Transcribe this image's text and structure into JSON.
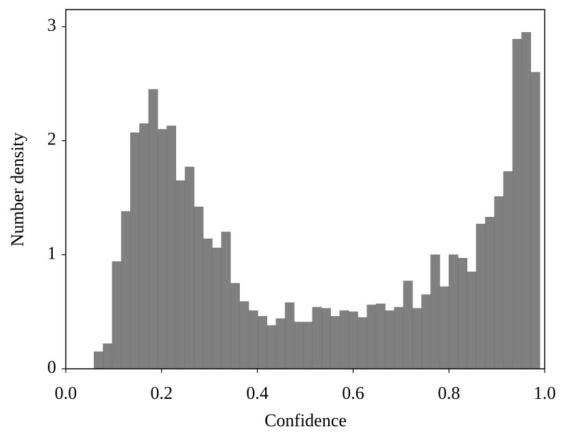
{
  "chart_data": {
    "type": "histogram",
    "xlabel": "Confidence",
    "ylabel": "Number density",
    "bins": [
      0.059,
      0.078,
      0.097,
      0.116,
      0.135,
      0.154,
      0.173,
      0.192,
      0.211,
      0.23,
      0.249,
      0.268,
      0.287,
      0.306,
      0.325,
      0.344,
      0.363,
      0.382,
      0.401,
      0.42,
      0.439,
      0.458,
      0.477,
      0.496,
      0.515,
      0.534,
      0.553,
      0.572,
      0.591,
      0.61,
      0.629,
      0.648,
      0.667,
      0.686,
      0.705,
      0.724,
      0.743,
      0.762,
      0.781,
      0.8,
      0.819,
      0.838,
      0.857,
      0.876,
      0.895,
      0.914,
      0.933,
      0.952,
      0.971,
      0.99
    ],
    "values": [
      0.15,
      0.22,
      0.94,
      1.38,
      2.07,
      2.15,
      2.45,
      2.1,
      2.13,
      1.65,
      1.77,
      1.42,
      1.14,
      1.06,
      1.2,
      0.75,
      0.59,
      0.51,
      0.46,
      0.38,
      0.44,
      0.58,
      0.41,
      0.41,
      0.54,
      0.53,
      0.46,
      0.51,
      0.5,
      0.45,
      0.56,
      0.57,
      0.51,
      0.54,
      0.77,
      0.53,
      0.65,
      1.0,
      0.72,
      1.0,
      0.97,
      0.85,
      1.27,
      1.33,
      1.51,
      1.73,
      2.89,
      2.95,
      2.6
    ],
    "color": "#808080",
    "xlim": [
      0,
      1
    ],
    "ylim": [
      0,
      3.15
    ],
    "xticks": [
      {
        "value": 0,
        "label": "0.0"
      },
      0.2,
      0.4,
      0.6,
      0.8,
      {
        "value": 1,
        "label": "1.0"
      }
    ],
    "yticks": [
      0,
      1,
      2,
      3
    ]
  }
}
